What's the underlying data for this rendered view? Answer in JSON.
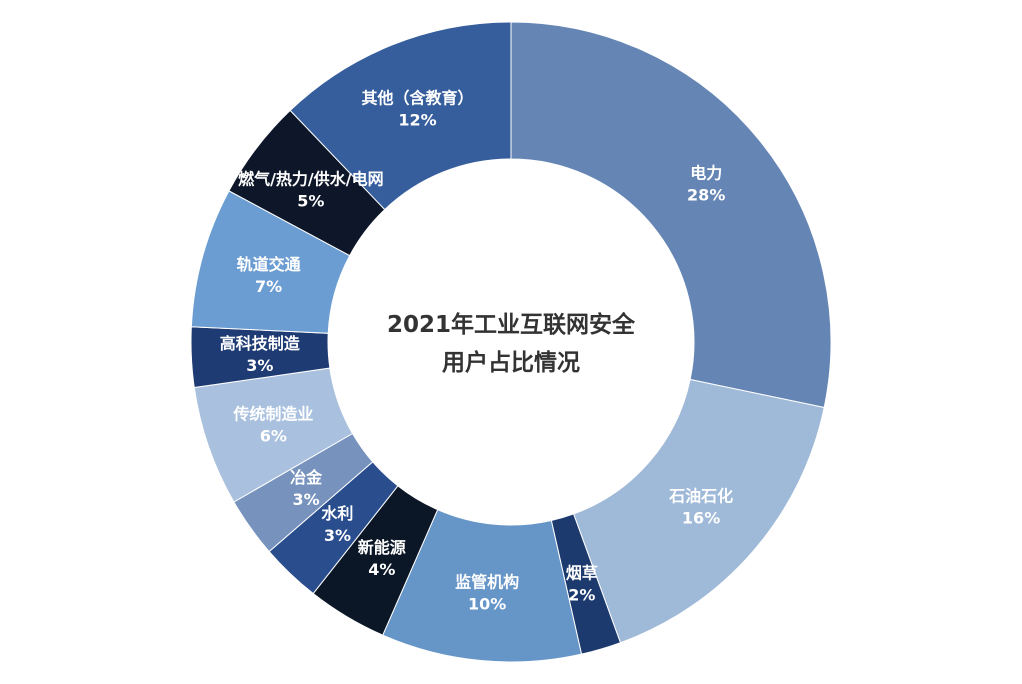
{
  "chart_data": {
    "type": "pie",
    "title_lines": [
      "2021年工业互联网安全",
      "用户占比情况"
    ],
    "slices": [
      {
        "name": "电力",
        "value": 28,
        "value_label": "28%",
        "color": "#6586b5",
        "label_lines": [
          "电力"
        ]
      },
      {
        "name": "石油石化",
        "value": 16,
        "value_label": "16%",
        "color": "#9fb9d8",
        "label_lines": [
          "石油石化"
        ]
      },
      {
        "name": "烟草",
        "value": 2,
        "value_label": "2%",
        "color": "#1c3a6e",
        "label_lines": [
          "烟草"
        ]
      },
      {
        "name": "监管机构",
        "value": 10,
        "value_label": "10%",
        "color": "#6695c8",
        "label_lines": [
          "监管机构"
        ]
      },
      {
        "name": "新能源",
        "value": 4,
        "value_label": "4%",
        "color": "#0b1626",
        "label_lines": [
          "新能源"
        ]
      },
      {
        "name": "水利",
        "value": 3,
        "value_label": "3%",
        "color": "#2a4d8e",
        "label_lines": [
          "水利"
        ]
      },
      {
        "name": "冶金",
        "value": 3,
        "value_label": "3%",
        "color": "#7692bd",
        "label_lines": [
          "冶金"
        ]
      },
      {
        "name": "传统制造业",
        "value": 6,
        "value_label": "6%",
        "color": "#a9c1de",
        "label_lines": [
          "传统制造业"
        ]
      },
      {
        "name": "高科技制造",
        "value": 3,
        "value_label": "3%",
        "color": "#1e3b73",
        "label_lines": [
          "高科技制造"
        ]
      },
      {
        "name": "轨道交通",
        "value": 7,
        "value_label": "7%",
        "color": "#6c9dd2",
        "label_lines": [
          "轨道交通"
        ]
      },
      {
        "name": "燃气/热力/供水/电网",
        "value": 5,
        "value_label": "5%",
        "color": "#0d1729",
        "label_lines": [
          "燃气/热力/供水/电网"
        ]
      },
      {
        "name": "其他（含教育）",
        "value": 12,
        "value_label": "12%",
        "color": "#365e9d",
        "label_lines": [
          "其他（含教育）"
        ]
      }
    ],
    "legend": "none"
  }
}
